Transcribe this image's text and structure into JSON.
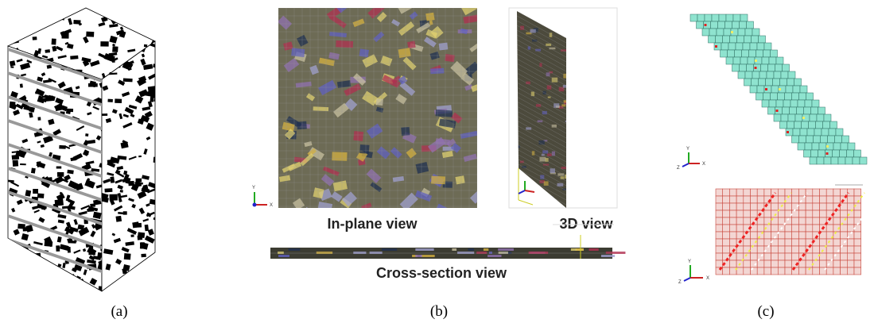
{
  "panels": [
    {
      "label": "(a)"
    },
    {
      "label": "(b)",
      "views": [
        "In-plane view",
        "3D view",
        "Cross-section view"
      ]
    },
    {
      "label": "(c)"
    }
  ],
  "axes": {
    "x": "X",
    "y": "Y",
    "z": "Z"
  }
}
